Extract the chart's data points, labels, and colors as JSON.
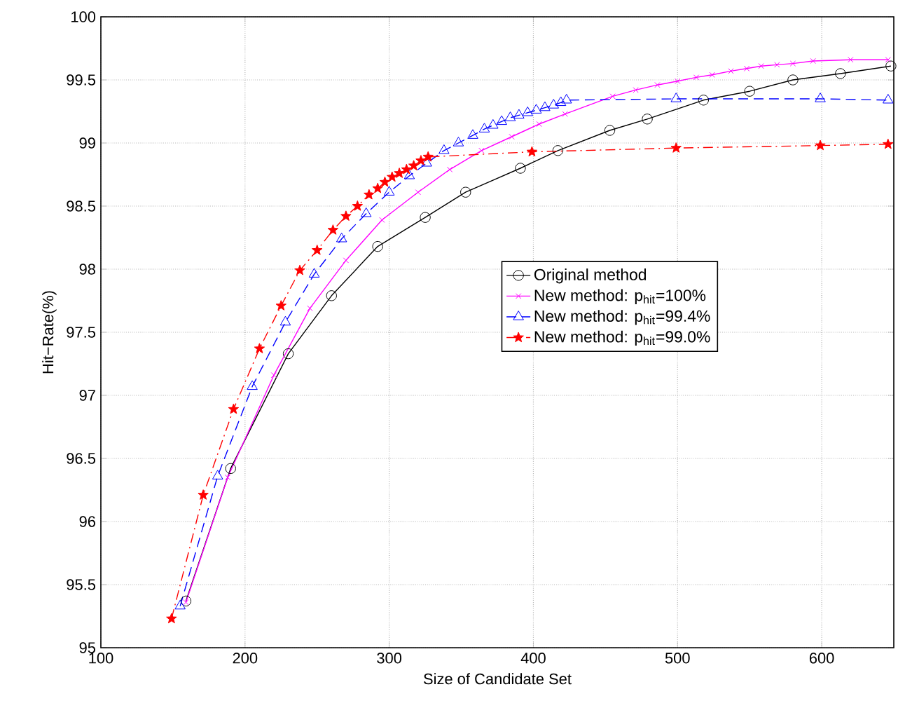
{
  "chart_data": {
    "type": "line",
    "xlabel": "Size of Candidate Set",
    "ylabel": "Hit−Rate(%)",
    "xlim": [
      100,
      650
    ],
    "ylim": [
      95,
      100
    ],
    "xticks": [
      100,
      200,
      300,
      400,
      500,
      600
    ],
    "yticks": [
      95,
      95.5,
      96,
      96.5,
      97,
      97.5,
      98,
      98.5,
      99,
      99.5,
      100
    ],
    "grid": true,
    "legend": "right",
    "series": [
      {
        "name": "Original method",
        "color": "#000000",
        "marker": "circle",
        "line_style": "solid",
        "x": [
          159,
          190,
          230,
          260,
          292,
          325,
          353,
          391,
          417,
          453,
          479,
          518,
          550,
          580,
          613,
          648
        ],
        "values": [
          95.37,
          96.42,
          97.33,
          97.79,
          98.18,
          98.41,
          98.61,
          98.8,
          98.94,
          99.1,
          99.19,
          99.34,
          99.41,
          99.5,
          99.55,
          99.61
        ]
      },
      {
        "name": "New method: p$_{hit}$=100%",
        "color": "#ff00ff",
        "marker": "cross",
        "line_style": "solid",
        "x": [
          159,
          188,
          220,
          245,
          270,
          295,
          320,
          342,
          364,
          385,
          404,
          422,
          455,
          471,
          486,
          500,
          513,
          524,
          537,
          548,
          558,
          569,
          580,
          594,
          620,
          646
        ],
        "values": [
          95.36,
          96.35,
          97.16,
          97.69,
          98.07,
          98.39,
          98.61,
          98.79,
          98.94,
          99.05,
          99.15,
          99.23,
          99.37,
          99.42,
          99.46,
          99.49,
          99.52,
          99.54,
          99.57,
          99.59,
          99.61,
          99.62,
          99.63,
          99.65,
          99.66,
          99.66
        ]
      },
      {
        "name": "New method: p$_{hit}$=99.4%",
        "color": "#0000ff",
        "marker": "triangle",
        "line_style": "dashed",
        "x": [
          155,
          181,
          205,
          228,
          248,
          267,
          284,
          300,
          314,
          326,
          338,
          348,
          358,
          366,
          372,
          378,
          384,
          390,
          396,
          402,
          408,
          414,
          419,
          423,
          499,
          599,
          646
        ],
        "values": [
          95.33,
          96.36,
          97.07,
          97.58,
          97.96,
          98.24,
          98.44,
          98.61,
          98.74,
          98.84,
          98.94,
          99.0,
          99.06,
          99.11,
          99.14,
          99.17,
          99.2,
          99.22,
          99.24,
          99.26,
          99.28,
          99.3,
          99.32,
          99.34,
          99.35,
          99.35,
          99.34
        ]
      },
      {
        "name": "New method: p$_{hit}$=99.0%",
        "color": "#ff0000",
        "marker": "star",
        "line_style": "dashdot",
        "x": [
          149,
          171,
          192,
          210,
          225,
          238,
          250,
          261,
          270,
          278,
          286,
          292,
          297,
          302,
          307,
          312,
          317,
          322,
          327,
          399,
          499,
          599,
          646
        ],
        "values": [
          95.23,
          96.21,
          96.89,
          97.37,
          97.71,
          97.99,
          98.15,
          98.31,
          98.42,
          98.5,
          98.59,
          98.64,
          98.69,
          98.73,
          98.76,
          98.79,
          98.82,
          98.86,
          98.89,
          98.93,
          98.96,
          98.98,
          98.99
        ]
      }
    ]
  }
}
